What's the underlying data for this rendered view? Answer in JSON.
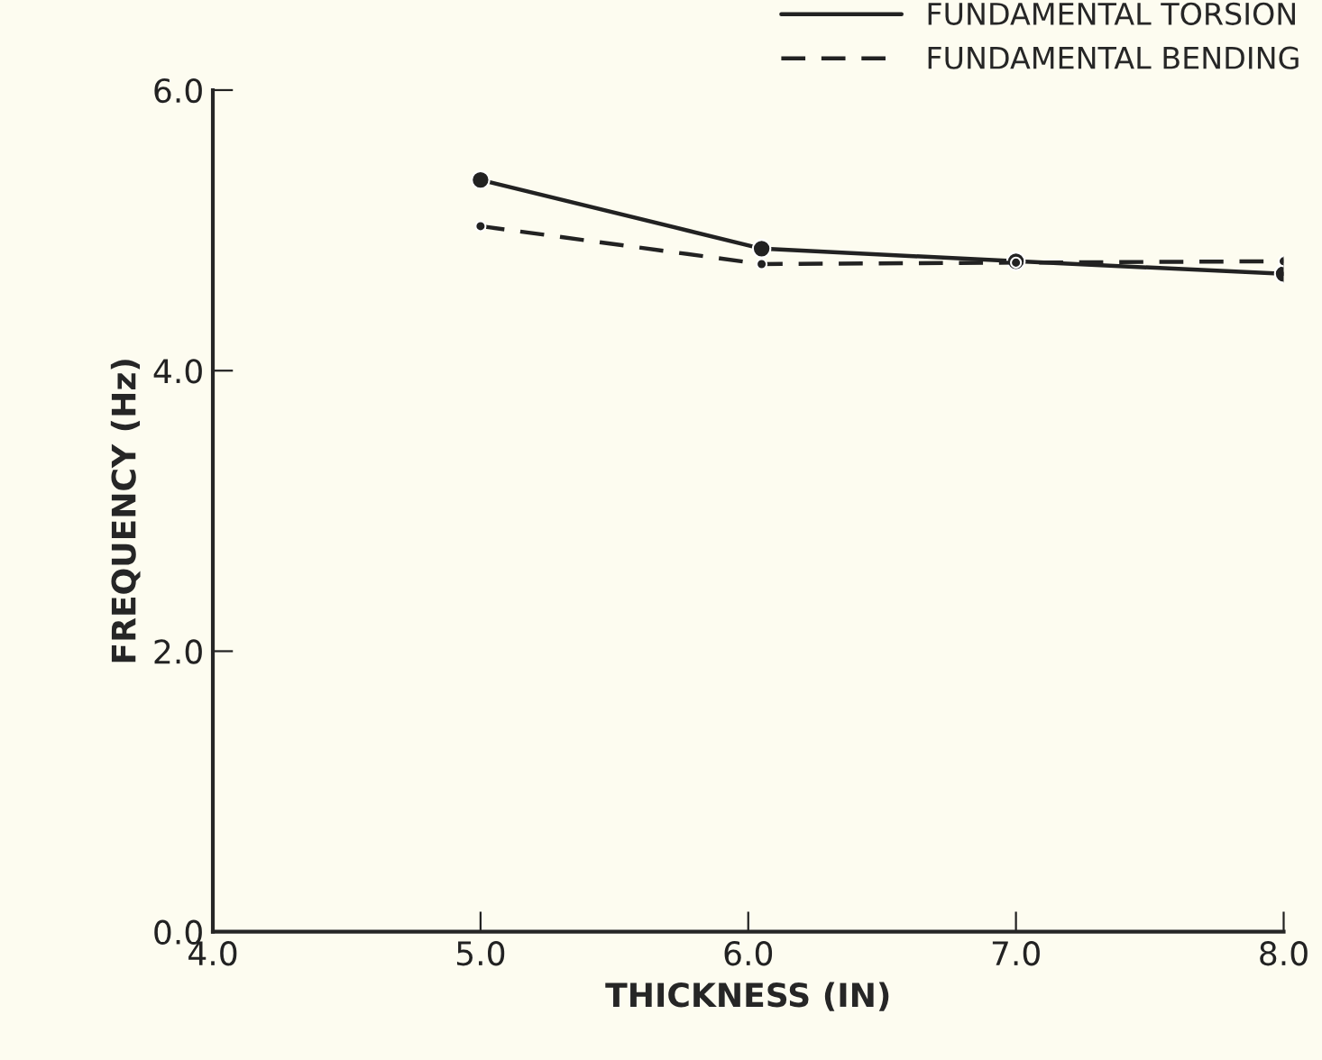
{
  "chart_data": {
    "type": "line",
    "xlabel": "THICKNESS (IN)",
    "ylabel": "FREQUENCY (Hz)",
    "x": [
      5.0,
      6.05,
      7.0,
      8.0
    ],
    "series": [
      {
        "name": "FUNDAMENTAL TORSION",
        "color": "#222222",
        "line_style": "solid",
        "values": [
          5.36,
          4.87,
          4.78,
          4.69
        ]
      },
      {
        "name": "FUNDAMENTAL BENDING",
        "color": "#222222",
        "line_style": "dashed",
        "values": [
          5.03,
          4.76,
          4.77,
          4.78
        ]
      }
    ],
    "xlim": [
      4.0,
      8.0
    ],
    "ylim": [
      0.0,
      6.0
    ],
    "xticks": [
      {
        "value": 4.0,
        "label": "4.0"
      },
      {
        "value": 5.0,
        "label": "5.0"
      },
      {
        "value": 6.0,
        "label": "6.0"
      },
      {
        "value": 7.0,
        "label": "7.0"
      },
      {
        "value": 8.0,
        "label": "8.0"
      }
    ],
    "yticks": [
      {
        "value": 0.0,
        "label": "0.0"
      },
      {
        "value": 2.0,
        "label": "2.0"
      },
      {
        "value": 4.0,
        "label": "4.0"
      },
      {
        "value": 6.0,
        "label": "6.0"
      }
    ],
    "marker": "circle",
    "grid": false,
    "legend": "top right"
  }
}
